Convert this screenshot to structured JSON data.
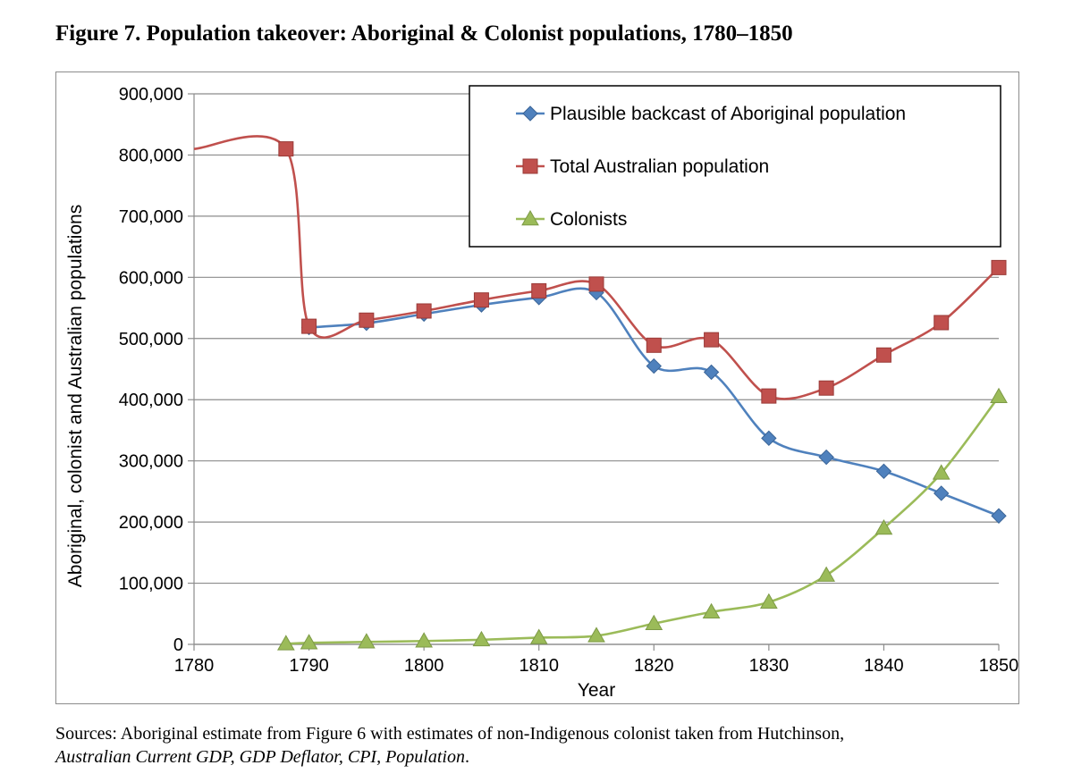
{
  "figure_title": "Figure 7. Population takeover: Aboriginal & Colonist populations, 1780–1850",
  "sources": {
    "text": "Sources: Aboriginal estimate from Figure 6 with estimates of non-Indigenous colonist taken from Hutchinson,",
    "reference": "Australian Current GDP, GDP Deflator, CPI, Population",
    "period": "."
  },
  "colors": {
    "aboriginal": "#4f81bd",
    "total": "#c0504d",
    "colonists": "#9bbb59",
    "grid": "#8c8c8c"
  },
  "chart_data": {
    "type": "line",
    "title": "",
    "xlabel": "Year",
    "ylabel": "Aboriginal, colonist and Australian populations",
    "xlim": [
      1780,
      1850
    ],
    "ylim": [
      0,
      900000
    ],
    "x_ticks": [
      1780,
      1790,
      1800,
      1810,
      1820,
      1830,
      1840,
      1850
    ],
    "y_ticks": [
      0,
      100000,
      200000,
      300000,
      400000,
      500000,
      600000,
      700000,
      800000,
      900000
    ],
    "y_tick_labels": [
      "0",
      "100,000",
      "200,000",
      "300,000",
      "400,000",
      "500,000",
      "600,000",
      "700,000",
      "800,000",
      "900,000"
    ],
    "x_tick_labels": [
      "1780",
      "1790",
      "1800",
      "1810",
      "1820",
      "1830",
      "1840",
      "1850"
    ],
    "grid": true,
    "legend_position": "top-right",
    "series": [
      {
        "name": "Plausible backcast of Aboriginal population",
        "marker": "diamond",
        "color_key": "aboriginal",
        "x": [
          1790,
          1795,
          1800,
          1805,
          1810,
          1815,
          1820,
          1825,
          1830,
          1835,
          1840,
          1845,
          1850
        ],
        "values": [
          518000,
          525000,
          540000,
          555000,
          567000,
          575000,
          455000,
          445000,
          337000,
          306000,
          283000,
          247000,
          210000
        ]
      },
      {
        "name": "Total Australian population",
        "marker": "square",
        "color_key": "total",
        "x": [
          1780,
          1788,
          1790,
          1795,
          1800,
          1805,
          1810,
          1815,
          1820,
          1825,
          1830,
          1835,
          1840,
          1845,
          1850
        ],
        "values": [
          810000,
          810000,
          520000,
          530000,
          545000,
          563000,
          578000,
          589000,
          489000,
          498000,
          406000,
          419000,
          473000,
          526000,
          616000
        ],
        "marker_mask": [
          false,
          true,
          true,
          true,
          true,
          true,
          true,
          true,
          true,
          true,
          true,
          true,
          true,
          true,
          true
        ]
      },
      {
        "name": "Colonists",
        "marker": "triangle",
        "color_key": "colonists",
        "x": [
          1788,
          1790,
          1795,
          1800,
          1805,
          1810,
          1815,
          1820,
          1825,
          1830,
          1835,
          1840,
          1845,
          1850
        ],
        "values": [
          1000,
          2500,
          4000,
          5500,
          7500,
          11000,
          14000,
          34000,
          53000,
          69000,
          113000,
          190000,
          280000,
          405000
        ]
      }
    ]
  }
}
